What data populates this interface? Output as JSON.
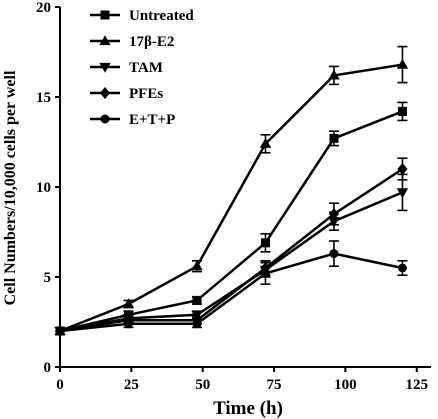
{
  "chart_data": {
    "type": "line",
    "xlabel": "Time (h)",
    "ylabel": "Cell Numbers/10,000 cells per well",
    "xlim": [
      0,
      130
    ],
    "ylim": [
      0,
      20
    ],
    "xticks": [
      "0",
      "25",
      "50",
      "75",
      "100",
      "125"
    ],
    "yticks": [
      "0",
      "5",
      "10",
      "15",
      "20"
    ],
    "legend_position": "top-left",
    "grid": false,
    "x": [
      0,
      24,
      48,
      72,
      96,
      120
    ],
    "series": [
      {
        "name": "Untreated",
        "marker": "square",
        "values": [
          2.0,
          2.9,
          3.7,
          6.9,
          12.7,
          14.2
        ],
        "errors": [
          0.15,
          0.2,
          0.2,
          0.5,
          0.4,
          0.5
        ]
      },
      {
        "name": "17β-E2",
        "marker": "triangle-up",
        "values": [
          2.0,
          3.5,
          5.6,
          12.4,
          16.2,
          16.8
        ],
        "errors": [
          0.15,
          0.2,
          0.3,
          0.5,
          0.5,
          1.0
        ]
      },
      {
        "name": "TAM",
        "marker": "triangle-down",
        "values": [
          2.0,
          2.7,
          2.9,
          5.4,
          8.1,
          9.7
        ],
        "errors": [
          0.15,
          0.2,
          0.2,
          0.4,
          0.5,
          1.0
        ]
      },
      {
        "name": "PFEs",
        "marker": "diamond",
        "values": [
          2.0,
          2.6,
          2.6,
          5.5,
          8.5,
          11.0
        ],
        "errors": [
          0.15,
          0.2,
          0.2,
          0.4,
          0.6,
          0.6
        ]
      },
      {
        "name": "E+T+P",
        "marker": "circle",
        "values": [
          2.0,
          2.4,
          2.4,
          5.2,
          6.3,
          5.5
        ],
        "errors": [
          0.15,
          0.2,
          0.2,
          0.6,
          0.7,
          0.4
        ]
      }
    ]
  }
}
